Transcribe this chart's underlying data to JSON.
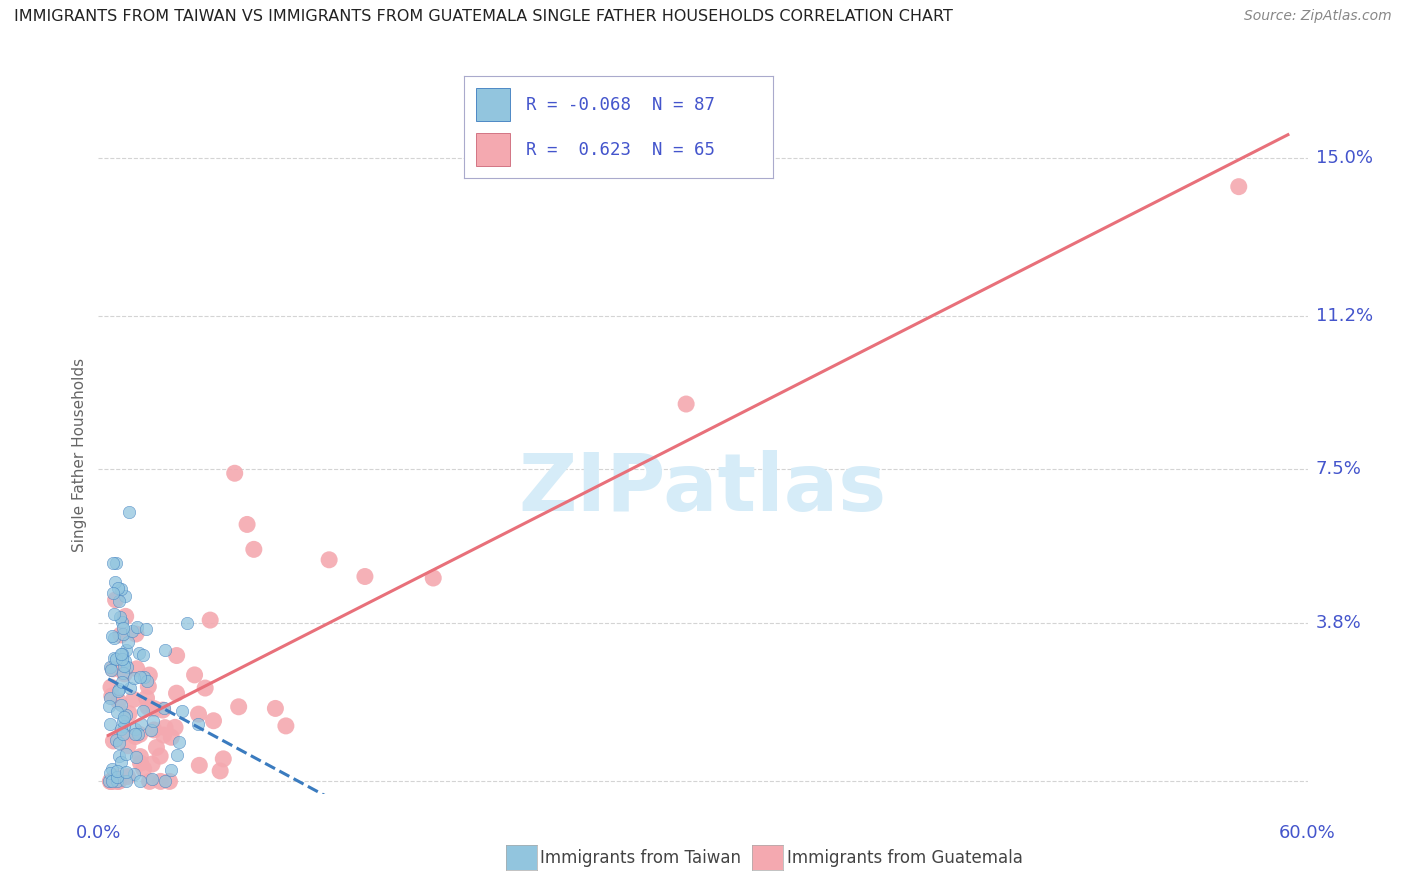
{
  "title": "IMMIGRANTS FROM TAIWAN VS IMMIGRANTS FROM GUATEMALA SINGLE FATHER HOUSEHOLDS CORRELATION CHART",
  "source": "Source: ZipAtlas.com",
  "ylabel": "Single Father Households",
  "taiwan_R": -0.068,
  "taiwan_N": 87,
  "guatemala_R": 0.623,
  "guatemala_N": 65,
  "taiwan_color": "#92c5de",
  "guatemala_color": "#f4a9b0",
  "taiwan_line_color": "#3a7bbf",
  "guatemala_line_color": "#e8707a",
  "watermark_color": "#d6ecf8",
  "background_color": "#ffffff",
  "grid_color": "#d0d0d0",
  "axis_label_color": "#4455cc",
  "title_color": "#222222",
  "ytick_vals": [
    0.0,
    0.038,
    0.075,
    0.112,
    0.15
  ],
  "ytick_labels": [
    "",
    "3.8%",
    "7.5%",
    "11.2%",
    "15.0%"
  ],
  "xlim": [
    0.0,
    0.6
  ],
  "ylim": [
    0.0,
    0.155
  ]
}
